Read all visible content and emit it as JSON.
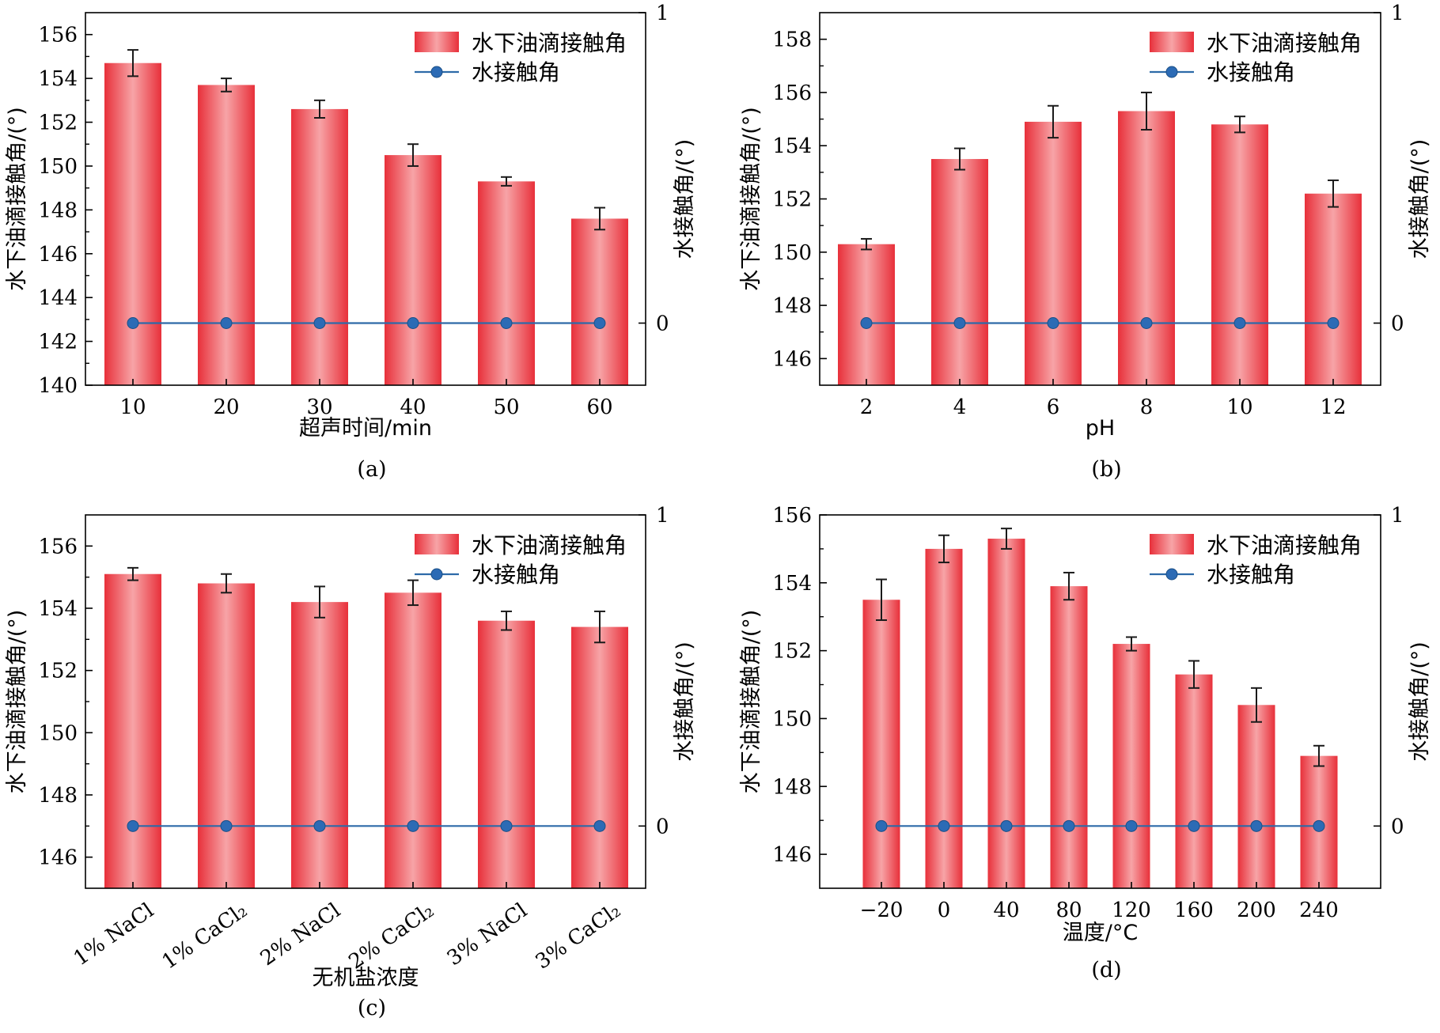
{
  "colors": {
    "bar_dark": "#e8303a",
    "bar_light": "#f7a4a7",
    "line": "#2d6aa8",
    "marker": "#2c6bb5",
    "error": "#1a1a1a",
    "axis": "#000000"
  },
  "legend": {
    "bar_label": "水下油滴接触角",
    "line_label": "水接触角"
  },
  "chart_data": [
    {
      "type": "bar",
      "caption": "(a)",
      "xlabel": "超声时间/min",
      "ylabel": "水下油滴接触角/(°)",
      "y2label": "水接触角/(°)",
      "categories": [
        "10",
        "20",
        "30",
        "40",
        "50",
        "60"
      ],
      "values": [
        154.7,
        153.7,
        152.6,
        150.5,
        149.3,
        147.6
      ],
      "errors": [
        0.6,
        0.3,
        0.4,
        0.5,
        0.2,
        0.5
      ],
      "ylim": [
        140,
        157
      ],
      "yticks": [
        140,
        142,
        144,
        146,
        148,
        150,
        152,
        154,
        156
      ],
      "y2lim": [
        -0.2,
        1
      ],
      "y2ticks": [
        "0",
        "1"
      ],
      "series2": {
        "name": "水接触角",
        "values": [
          0,
          0,
          0,
          0,
          0,
          0
        ]
      }
    },
    {
      "type": "bar",
      "caption": "(b)",
      "xlabel": "pH",
      "ylabel": "水下油滴接触角/(°)",
      "y2label": "水接触角/(°)",
      "categories": [
        "2",
        "4",
        "6",
        "8",
        "10",
        "12"
      ],
      "values": [
        150.3,
        153.5,
        154.9,
        155.3,
        154.8,
        152.2
      ],
      "errors": [
        0.2,
        0.4,
        0.6,
        0.7,
        0.3,
        0.5
      ],
      "ylim": [
        145,
        159
      ],
      "yticks": [
        146,
        148,
        150,
        152,
        154,
        156,
        158
      ],
      "y2lim": [
        -0.2,
        1
      ],
      "y2ticks": [
        "0",
        "1"
      ],
      "series2": {
        "name": "水接触角",
        "values": [
          0,
          0,
          0,
          0,
          0,
          0
        ]
      }
    },
    {
      "type": "bar",
      "caption": "(c)",
      "xlabel": "无机盐浓度",
      "ylabel": "水下油滴接触角/(°)",
      "y2label": "水接触角/(°)",
      "categories": [
        "1% NaCl",
        "1% CaCl₂",
        "2% NaCl",
        "2% CaCl₂",
        "3% NaCl",
        "3% CaCl₂"
      ],
      "values": [
        155.1,
        154.8,
        154.2,
        154.5,
        153.6,
        153.4
      ],
      "errors": [
        0.2,
        0.3,
        0.5,
        0.4,
        0.3,
        0.5
      ],
      "ylim": [
        145,
        157
      ],
      "yticks": [
        146,
        148,
        150,
        152,
        154,
        156
      ],
      "y2lim": [
        -0.2,
        1
      ],
      "y2ticks": [
        "0",
        "1"
      ],
      "series2": {
        "name": "水接触角",
        "values": [
          0,
          0,
          0,
          0,
          0,
          0
        ]
      }
    },
    {
      "type": "bar",
      "caption": "(d)",
      "xlabel": "温度/°C",
      "ylabel": "水下油滴接触角/(°)",
      "y2label": "水接触角/(°)",
      "categories": [
        "−20",
        "0",
        "40",
        "80",
        "120",
        "160",
        "200",
        "240"
      ],
      "values": [
        153.5,
        155.0,
        155.3,
        153.9,
        152.2,
        151.3,
        150.4,
        148.9
      ],
      "errors": [
        0.6,
        0.4,
        0.3,
        0.4,
        0.2,
        0.4,
        0.5,
        0.3
      ],
      "ylim": [
        145,
        156
      ],
      "yticks": [
        146,
        148,
        150,
        152,
        154,
        156
      ],
      "y2lim": [
        -0.2,
        1
      ],
      "y2ticks": [
        "0",
        "1"
      ],
      "series2": {
        "name": "水接触角",
        "values": [
          0,
          0,
          0,
          0,
          0,
          0,
          0,
          0
        ]
      }
    }
  ]
}
